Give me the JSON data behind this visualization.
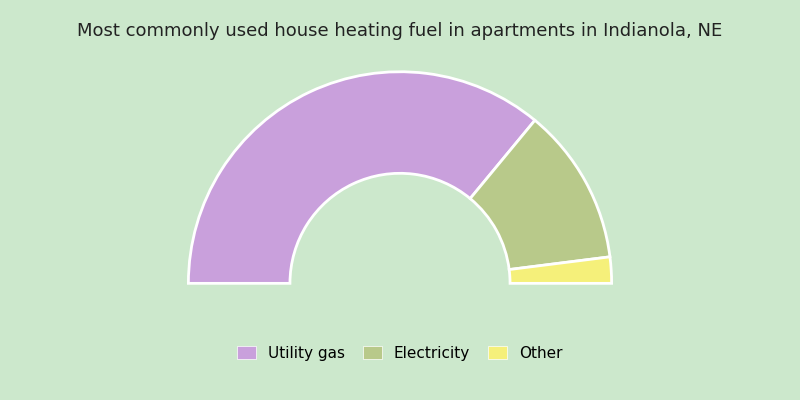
{
  "title": "Most commonly used house heating fuel in apartments in Indianola, NE",
  "categories": [
    "Utility gas",
    "Electricity",
    "Other"
  ],
  "values": [
    72.0,
    24.0,
    4.0
  ],
  "colors": [
    "#c9a0dc",
    "#b8c98a",
    "#f5f07a"
  ],
  "bg_color": "#cce8cc",
  "border_color": "#00ffff",
  "title_fontsize": 13,
  "title_color": "#222222",
  "legend_fontsize": 11
}
